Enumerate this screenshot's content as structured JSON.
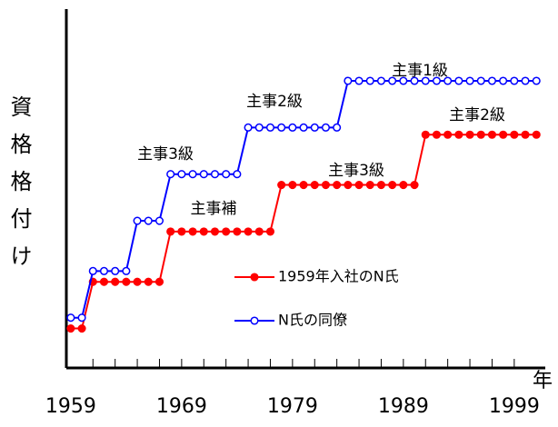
{
  "chart_data": {
    "type": "line",
    "y_label": "資格格付け",
    "x_label": "年",
    "x": [
      1959,
      1960,
      1961,
      1962,
      1963,
      1964,
      1965,
      1966,
      1967,
      1968,
      1969,
      1970,
      1971,
      1972,
      1973,
      1974,
      1975,
      1976,
      1977,
      1978,
      1979,
      1980,
      1981,
      1982,
      1983,
      1984,
      1985,
      1986,
      1987,
      1988,
      1989,
      1990,
      1991,
      1992,
      1993,
      1994,
      1995,
      1996,
      1997,
      1998,
      1999,
      2000,
      2001
    ],
    "series": [
      {
        "name": "1959年入社のN氏",
        "color": "#ff0000",
        "filled": true,
        "values": [
          11,
          11,
          24,
          24,
          24,
          24,
          24,
          24,
          24,
          38,
          38,
          38,
          38,
          38,
          38,
          38,
          38,
          38,
          38,
          51,
          51,
          51,
          51,
          51,
          51,
          51,
          51,
          51,
          51,
          51,
          51,
          51,
          65,
          65,
          65,
          65,
          65,
          65,
          65,
          65,
          65,
          65,
          65
        ]
      },
      {
        "name": "N氏の同僚",
        "color": "#0000ff",
        "filled": false,
        "values": [
          14,
          14,
          27,
          27,
          27,
          27,
          41,
          41,
          41,
          54,
          54,
          54,
          54,
          54,
          54,
          54,
          67,
          67,
          67,
          67,
          67,
          67,
          67,
          67,
          67,
          80,
          80,
          80,
          80,
          80,
          80,
          80,
          80,
          80,
          80,
          80,
          80,
          80,
          80,
          80,
          80,
          80,
          80
        ]
      }
    ],
    "annotations": [
      "主事補",
      "主事3級",
      "主事2級",
      "主事1級",
      "主事3級",
      "主事2級"
    ],
    "xlim": [
      1958.6,
      2001.8
    ],
    "xticks": [
      1959,
      1969,
      1979,
      1989,
      1999
    ],
    "xminorticks": [
      1961,
      1963,
      1965,
      1967,
      1969,
      1971,
      1973,
      1975,
      1977,
      1979,
      1981,
      1983,
      1985,
      1987,
      1989,
      1991,
      1993,
      1995,
      1997,
      1999
    ],
    "ylim": [
      0,
      100
    ],
    "legend": "center"
  }
}
